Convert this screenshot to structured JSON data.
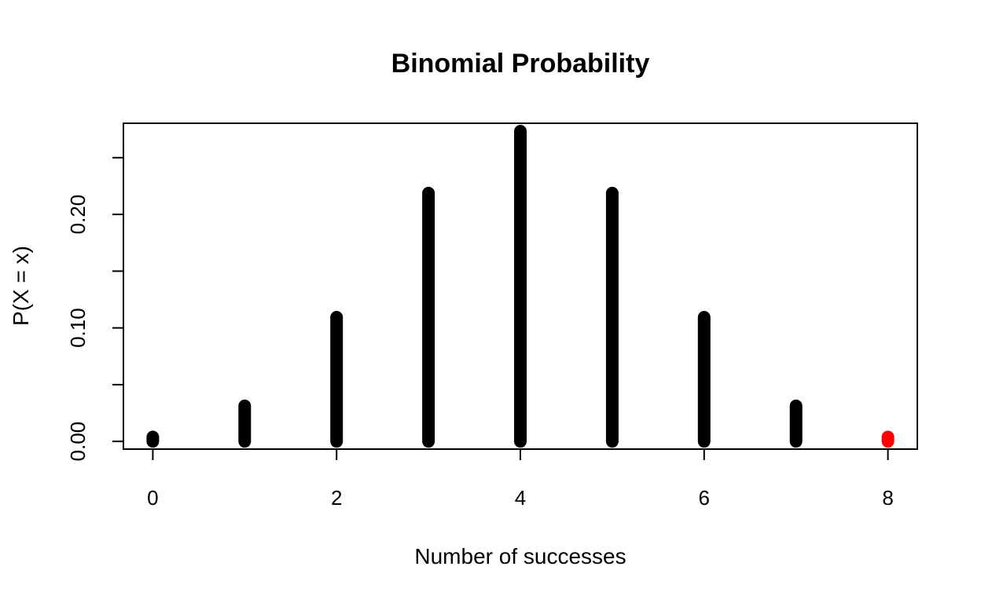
{
  "chart_data": {
    "type": "bar",
    "title": "Binomial Probability",
    "xlabel": "Number of successes",
    "ylabel": "P(X = x)",
    "x": [
      0,
      1,
      2,
      3,
      4,
      5,
      6,
      7,
      8
    ],
    "series": [
      {
        "values": [
          0.0039,
          0.0313,
          0.1094,
          0.2188,
          0.2734,
          0.2188,
          0.1094,
          0.0313,
          0.0039
        ]
      }
    ],
    "highlight": {
      "x": 8,
      "color": "#ff0000"
    },
    "bar_color": "#000000",
    "xlim": [
      -0.32,
      8.32
    ],
    "ylim": [
      -0.0068,
      0.2803
    ],
    "x_ticks": [
      0,
      2,
      4,
      6,
      8
    ],
    "x_tick_labels": [
      "0",
      "2",
      "4",
      "6",
      "8"
    ],
    "y_ticks": [
      0.0,
      0.05,
      0.1,
      0.15,
      0.2,
      0.25
    ],
    "y_tick_labels": [
      "0.00",
      "",
      "0.10",
      "",
      "0.20",
      ""
    ],
    "grid": false,
    "legend": "none"
  }
}
